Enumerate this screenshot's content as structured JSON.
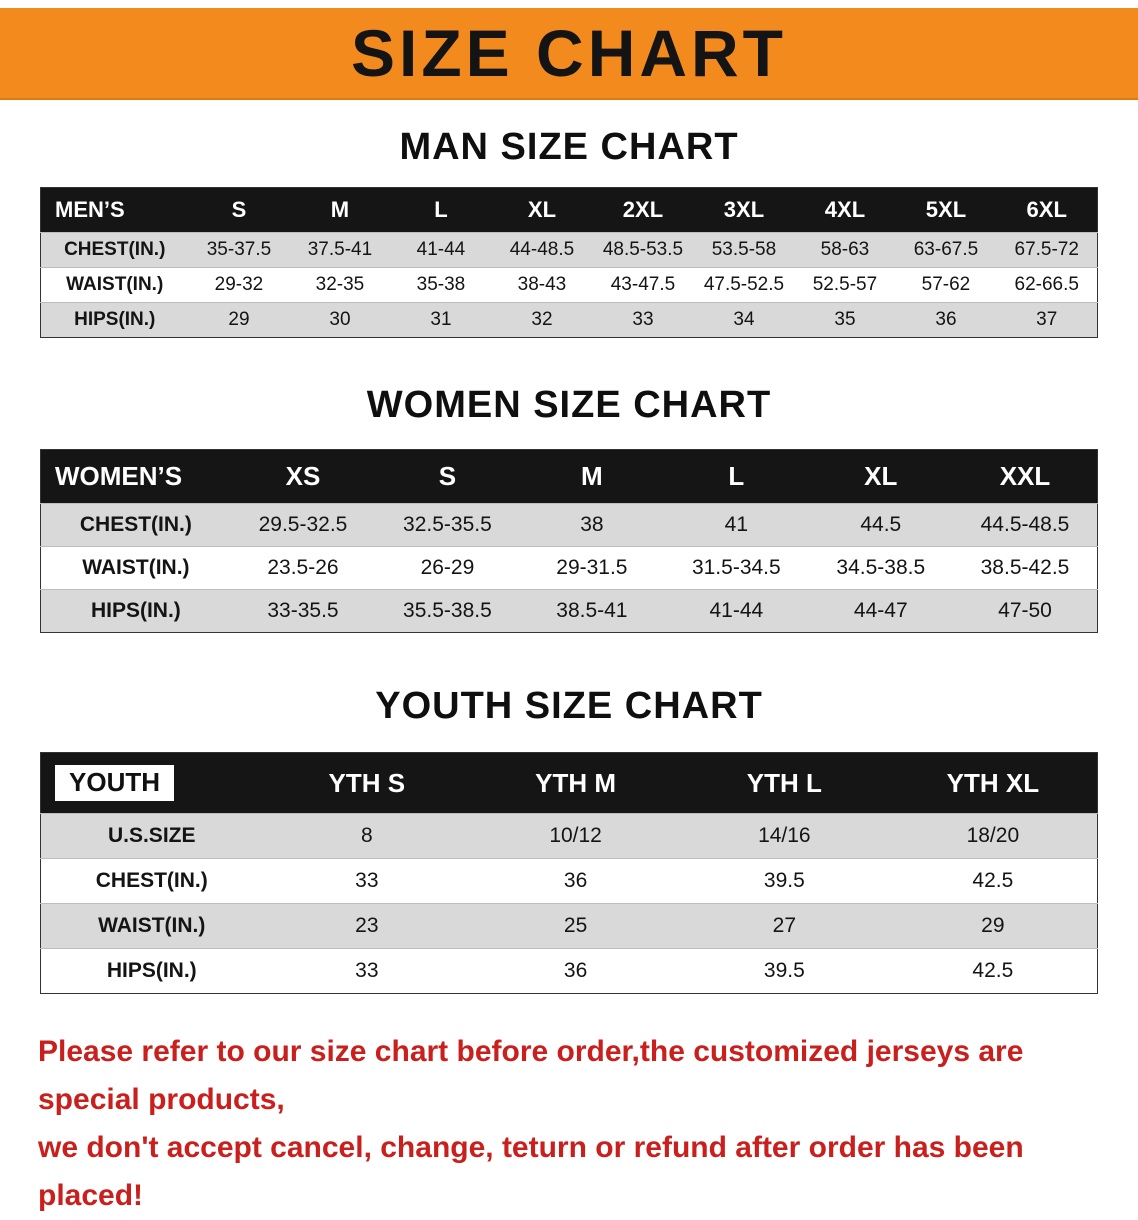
{
  "banner": {
    "title": "SIZE CHART"
  },
  "colors": {
    "banner_orange": "#F28A1E",
    "header_black": "#151515",
    "row_gray": "#D9D9D9",
    "note_red": "#C9201D"
  },
  "tables": [
    {
      "id": "men",
      "title": "MAN SIZE CHART",
      "corner_chip": false,
      "header": [
        "MEN’S",
        "S",
        "M",
        "L",
        "XL",
        "2XL",
        "3XL",
        "4XL",
        "5XL",
        "6XL"
      ],
      "rows": [
        {
          "label": "CHEST(IN.)",
          "values": [
            "35-37.5",
            "37.5-41",
            "41-44",
            "44-48.5",
            "48.5-53.5",
            "53.5-58",
            "58-63",
            "63-67.5",
            "67.5-72"
          ]
        },
        {
          "label": "WAIST(IN.)",
          "values": [
            "29-32",
            "32-35",
            "35-38",
            "38-43",
            "43-47.5",
            "47.5-52.5",
            "52.5-57",
            "57-62",
            "62-66.5"
          ]
        },
        {
          "label": "HIPS(IN.)",
          "values": [
            "29",
            "30",
            "31",
            "32",
            "33",
            "34",
            "35",
            "36",
            "37"
          ]
        }
      ]
    },
    {
      "id": "women",
      "title": "WOMEN SIZE CHART",
      "corner_chip": false,
      "header": [
        "WOMEN’S",
        "XS",
        "S",
        "M",
        "L",
        "XL",
        "XXL"
      ],
      "rows": [
        {
          "label": "CHEST(IN.)",
          "values": [
            "29.5-32.5",
            "32.5-35.5",
            "38",
            "41",
            "44.5",
            "44.5-48.5"
          ]
        },
        {
          "label": "WAIST(IN.)",
          "values": [
            "23.5-26",
            "26-29",
            "29-31.5",
            "31.5-34.5",
            "34.5-38.5",
            "38.5-42.5"
          ]
        },
        {
          "label": "HIPS(IN.)",
          "values": [
            "33-35.5",
            "35.5-38.5",
            "38.5-41",
            "41-44",
            "44-47",
            "47-50"
          ]
        }
      ]
    },
    {
      "id": "youth",
      "title": "YOUTH SIZE CHART",
      "corner_chip": true,
      "header": [
        "YOUTH",
        "YTH S",
        "YTH M",
        "YTH L",
        "YTH XL"
      ],
      "rows": [
        {
          "label": "U.S.SIZE",
          "values": [
            "8",
            "10/12",
            "14/16",
            "18/20"
          ]
        },
        {
          "label": "CHEST(IN.)",
          "values": [
            "33",
            "36",
            "39.5",
            "42.5"
          ]
        },
        {
          "label": "WAIST(IN.)",
          "values": [
            "23",
            "25",
            "27",
            "29"
          ]
        },
        {
          "label": "HIPS(IN.)",
          "values": [
            "33",
            "36",
            "39.5",
            "42.5"
          ]
        }
      ]
    }
  ],
  "footer": {
    "lines": [
      "Please refer to our size chart before order,the customized jerseys are special products,",
      "we don't accept cancel, change, teturn or refund after order has been placed!"
    ]
  }
}
